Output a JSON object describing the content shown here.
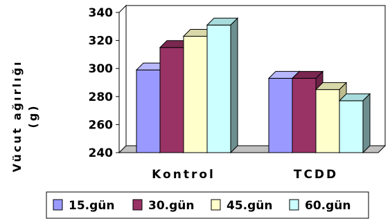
{
  "chart_data": {
    "type": "bar",
    "style": "3d-clustered",
    "title": "",
    "ylabel_line1": "Vücut ağırlığı",
    "ylabel_line2": "(g)",
    "xlabel": "",
    "ylim": [
      240,
      340
    ],
    "yticks": [
      "340",
      "320",
      "300",
      "280",
      "260",
      "240"
    ],
    "ytick_values": [
      340,
      320,
      300,
      280,
      260,
      240
    ],
    "categories": [
      "Kontrol",
      "TCDD"
    ],
    "series": [
      {
        "name": "15.gün",
        "values": [
          299,
          293
        ],
        "color": "#9999ff",
        "side": "#6f6fbb",
        "top": "#b8b8ff"
      },
      {
        "name": "30.gün",
        "values": [
          315,
          293
        ],
        "color": "#993366",
        "side": "#6e2249",
        "top": "#7a2850"
      },
      {
        "name": "45.gün",
        "values": [
          323,
          285
        ],
        "color": "#ffffcc",
        "side": "#bdbd8e",
        "top": "#d8d8a8"
      },
      {
        "name": "60.gün",
        "values": [
          331,
          277
        ],
        "color": "#ccffff",
        "side": "#6e8f8f",
        "top": "#a8dcdc"
      }
    ],
    "grid": false,
    "legend_position": "bottom",
    "wall_color": "#ffffff",
    "floor_color": "#c0c0c0"
  }
}
